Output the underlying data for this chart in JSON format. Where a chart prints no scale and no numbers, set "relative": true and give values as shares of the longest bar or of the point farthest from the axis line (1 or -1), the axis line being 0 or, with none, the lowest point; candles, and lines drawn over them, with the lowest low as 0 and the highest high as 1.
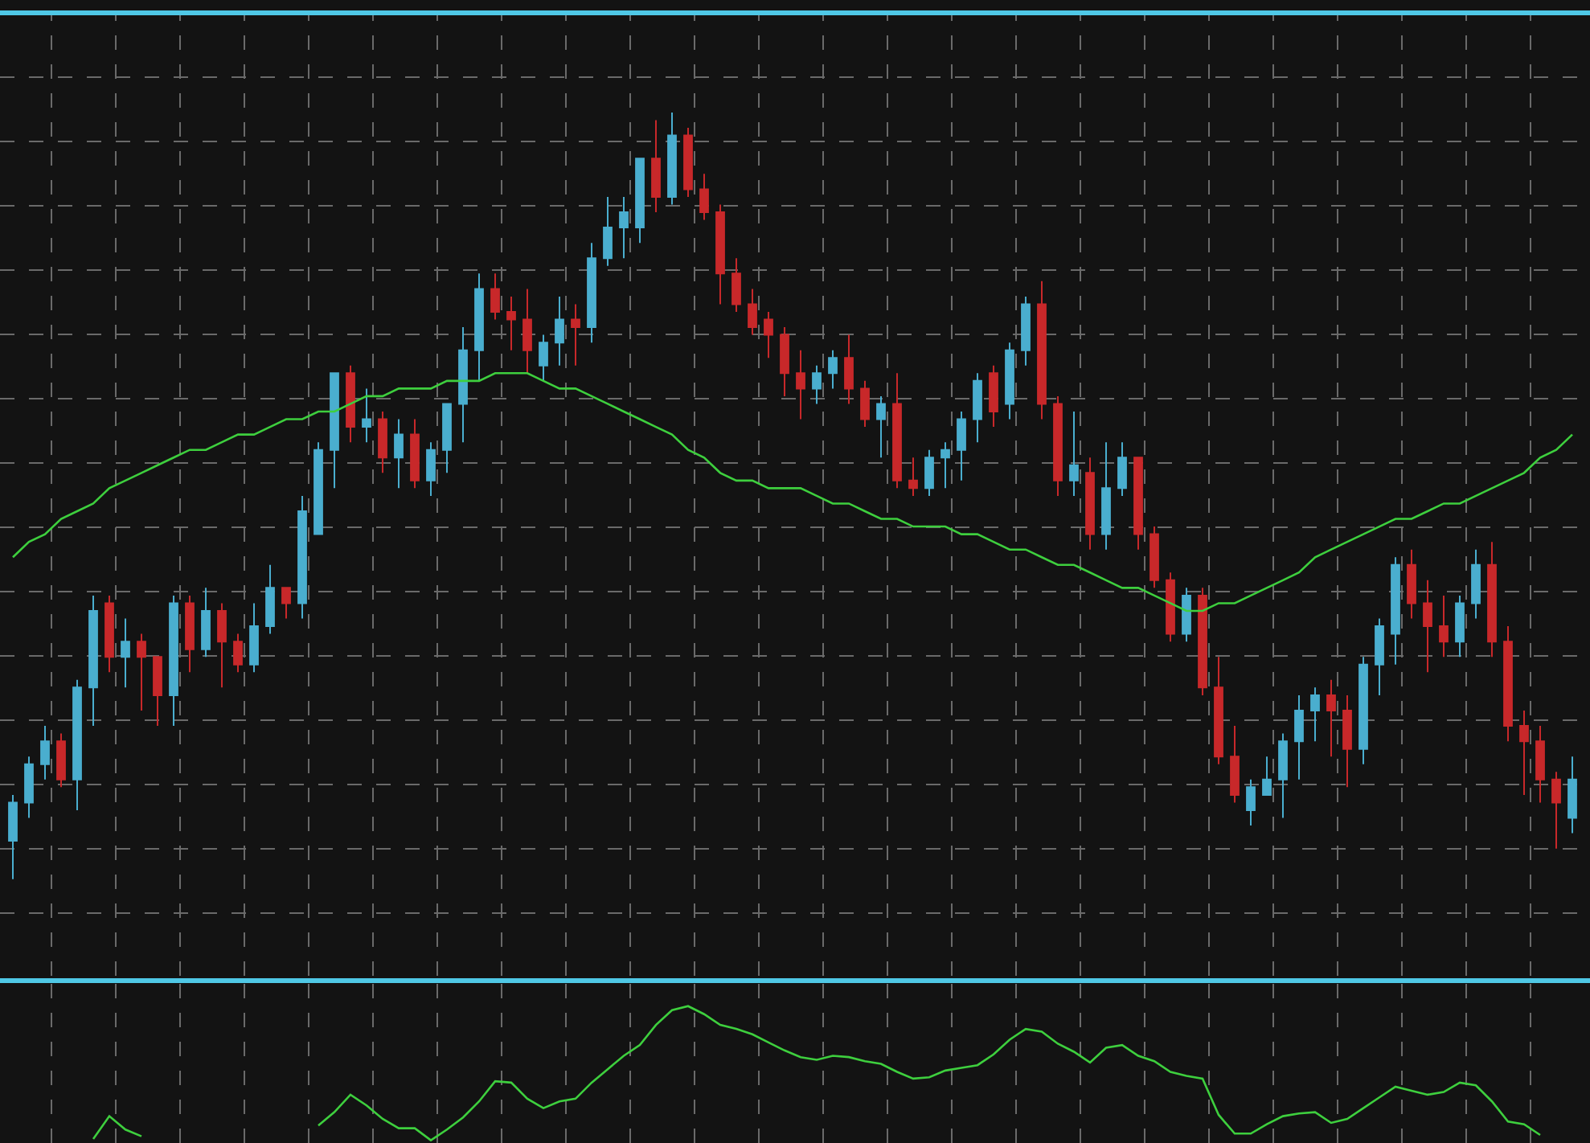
{
  "chart_data": [
    {
      "type": "candlestick",
      "relative": true,
      "grid": true,
      "tick_labels": false,
      "colors": [
        "#4aaecf",
        "#4aaecf",
        "#4aaecf",
        "#c8282a",
        "#4aaecf",
        "#4aaecf",
        "#c8282a",
        "#4aaecf",
        "#c8282a",
        "#c8282a",
        "#4aaecf",
        "#c8282a",
        "#4aaecf",
        "#c8282a",
        "#c8282a",
        "#4aaecf",
        "#4aaecf",
        "#c8282a",
        "#4aaecf",
        "#4aaecf",
        "#4aaecf",
        "#c8282a",
        "#4aaecf",
        "#c8282a",
        "#4aaecf",
        "#c8282a",
        "#4aaecf",
        "#4aaecf",
        "#4aaecf",
        "#4aaecf",
        "#c8282a",
        "#c8282a",
        "#c8282a",
        "#4aaecf",
        "#4aaecf",
        "#c8282a",
        "#4aaecf",
        "#4aaecf",
        "#4aaecf",
        "#4aaecf",
        "#c8282a",
        "#4aaecf",
        "#c8282a",
        "#c8282a",
        "#c8282a",
        "#c8282a",
        "#c8282a",
        "#c8282a",
        "#c8282a",
        "#c8282a",
        "#4aaecf",
        "#4aaecf",
        "#c8282a",
        "#c8282a",
        "#4aaecf",
        "#c8282a",
        "#c8282a",
        "#4aaecf",
        "#4aaecf",
        "#4aaecf",
        "#4aaecf",
        "#c8282a",
        "#4aaecf",
        "#4aaecf",
        "#c8282a",
        "#c8282a",
        "#4aaecf",
        "#c8282a",
        "#4aaecf",
        "#4aaecf",
        "#c8282a",
        "#c8282a",
        "#c8282a",
        "#4aaecf",
        "#c8282a",
        "#c8282a",
        "#c8282a",
        "#4aaecf",
        "#4aaecf",
        "#4aaecf",
        "#4aaecf",
        "#4aaecf",
        "#c8282a",
        "#c8282a",
        "#4aaecf",
        "#4aaecf",
        "#4aaecf",
        "#c8282a",
        "#c8282a",
        "#c8282a",
        "#4aaecf",
        "#4aaecf",
        "#c8282a",
        "#c8282a",
        "#c8282a",
        "#c8282a",
        "#c8282a",
        "#4aaecf"
      ],
      "categories": [
        null,
        null,
        null,
        null,
        null,
        null,
        null,
        null,
        null,
        null,
        null,
        null,
        null,
        null,
        null,
        null,
        null,
        null,
        null,
        null,
        null,
        null,
        null,
        null,
        null,
        null,
        null,
        null,
        null,
        null,
        null,
        null,
        null,
        null,
        null,
        null,
        null,
        null,
        null,
        null,
        null,
        null,
        null,
        null,
        null,
        null,
        null,
        null,
        null,
        null,
        null,
        null,
        null,
        null,
        null,
        null,
        null,
        null,
        null,
        null,
        null,
        null,
        null,
        null,
        null,
        null,
        null,
        null,
        null,
        null,
        null,
        null,
        null,
        null,
        null,
        null,
        null,
        null,
        null,
        null,
        null,
        null,
        null,
        null,
        null,
        null,
        null,
        null,
        null,
        null,
        null,
        null,
        null,
        null,
        null,
        null,
        null,
        null
      ],
      "ohlc": [
        [
          0.05,
          0.11,
          0,
          0.1
        ],
        [
          0.1,
          0.16,
          0.08,
          0.15
        ],
        [
          0.15,
          0.2,
          0.13,
          0.18
        ],
        [
          0.18,
          0.19,
          0.12,
          0.13
        ],
        [
          0.13,
          0.26,
          0.09,
          0.25
        ],
        [
          0.25,
          0.37,
          0.2,
          0.35
        ],
        [
          0.36,
          0.37,
          0.27,
          0.29
        ],
        [
          0.29,
          0.34,
          0.25,
          0.31
        ],
        [
          0.31,
          0.32,
          0.22,
          0.29
        ],
        [
          0.29,
          0.29,
          0.2,
          0.24
        ],
        [
          0.24,
          0.37,
          0.2,
          0.36
        ],
        [
          0.36,
          0.37,
          0.27,
          0.3
        ],
        [
          0.3,
          0.38,
          0.29,
          0.35
        ],
        [
          0.35,
          0.36,
          0.25,
          0.31
        ],
        [
          0.31,
          0.32,
          0.27,
          0.28
        ],
        [
          0.28,
          0.36,
          0.27,
          0.33
        ],
        [
          0.33,
          0.41,
          0.32,
          0.38
        ],
        [
          0.38,
          0.38,
          0.34,
          0.36
        ],
        [
          0.36,
          0.5,
          0.34,
          0.48
        ],
        [
          0.45,
          0.57,
          0.45,
          0.56
        ],
        [
          0.56,
          0.66,
          0.51,
          0.66
        ],
        [
          0.66,
          0.67,
          0.57,
          0.59
        ],
        [
          0.59,
          0.64,
          0.57,
          0.6
        ],
        [
          0.6,
          0.61,
          0.53,
          0.55
        ],
        [
          0.55,
          0.6,
          0.51,
          0.58
        ],
        [
          0.58,
          0.6,
          0.51,
          0.52
        ],
        [
          0.52,
          0.57,
          0.5,
          0.56
        ],
        [
          0.56,
          0.62,
          0.53,
          0.62
        ],
        [
          0.62,
          0.72,
          0.57,
          0.69
        ],
        [
          0.69,
          0.79,
          0.65,
          0.77
        ],
        [
          0.77,
          0.79,
          0.73,
          0.74
        ],
        [
          0.74,
          0.76,
          0.69,
          0.73
        ],
        [
          0.73,
          0.77,
          0.66,
          0.69
        ],
        [
          0.67,
          0.71,
          0.65,
          0.7
        ],
        [
          0.7,
          0.76,
          0.67,
          0.73
        ],
        [
          0.73,
          0.75,
          0.67,
          0.72
        ],
        [
          0.72,
          0.83,
          0.7,
          0.81
        ],
        [
          0.81,
          0.89,
          0.8,
          0.85
        ],
        [
          0.85,
          0.89,
          0.81,
          0.87
        ],
        [
          0.85,
          0.94,
          0.83,
          0.94
        ],
        [
          0.94,
          0.99,
          0.87,
          0.89
        ],
        [
          0.89,
          1,
          0.88,
          0.97
        ],
        [
          0.97,
          0.98,
          0.89,
          0.9
        ],
        [
          0.9,
          0.92,
          0.86,
          0.87
        ],
        [
          0.87,
          0.88,
          0.75,
          0.79
        ],
        [
          0.79,
          0.81,
          0.74,
          0.75
        ],
        [
          0.75,
          0.77,
          0.71,
          0.72
        ],
        [
          0.73,
          0.74,
          0.68,
          0.71
        ],
        [
          0.71,
          0.72,
          0.63,
          0.66
        ],
        [
          0.66,
          0.69,
          0.6,
          0.64
        ],
        [
          0.64,
          0.67,
          0.62,
          0.66
        ],
        [
          0.66,
          0.69,
          0.64,
          0.68
        ],
        [
          0.68,
          0.71,
          0.62,
          0.64
        ],
        [
          0.64,
          0.65,
          0.59,
          0.6
        ],
        [
          0.6,
          0.63,
          0.55,
          0.62
        ],
        [
          0.62,
          0.66,
          0.51,
          0.52
        ],
        [
          0.52,
          0.55,
          0.5,
          0.51
        ],
        [
          0.51,
          0.56,
          0.5,
          0.55
        ],
        [
          0.55,
          0.57,
          0.51,
          0.56
        ],
        [
          0.56,
          0.61,
          0.52,
          0.6
        ],
        [
          0.6,
          0.66,
          0.57,
          0.65
        ],
        [
          0.66,
          0.67,
          0.59,
          0.61
        ],
        [
          0.62,
          0.7,
          0.6,
          0.69
        ],
        [
          0.69,
          0.76,
          0.67,
          0.75
        ],
        [
          0.75,
          0.78,
          0.6,
          0.62
        ],
        [
          0.62,
          0.63,
          0.5,
          0.52
        ],
        [
          0.52,
          0.61,
          0.5,
          0.54
        ],
        [
          0.53,
          0.55,
          0.43,
          0.45
        ],
        [
          0.45,
          0.57,
          0.43,
          0.51
        ],
        [
          0.51,
          0.57,
          0.5,
          0.55
        ],
        [
          0.55,
          0.55,
          0.43,
          0.45
        ],
        [
          0.45,
          0.46,
          0.38,
          0.39
        ],
        [
          0.39,
          0.4,
          0.31,
          0.32
        ],
        [
          0.32,
          0.38,
          0.31,
          0.37
        ],
        [
          0.37,
          0.38,
          0.24,
          0.25
        ],
        [
          0.25,
          0.29,
          0.15,
          0.16
        ],
        [
          0.16,
          0.2,
          0.1,
          0.11
        ],
        [
          0.09,
          0.13,
          0.07,
          0.12
        ],
        [
          0.11,
          0.16,
          0.11,
          0.13
        ],
        [
          0.13,
          0.19,
          0.08,
          0.18
        ],
        [
          0.18,
          0.24,
          0.13,
          0.22
        ],
        [
          0.22,
          0.25,
          0.18,
          0.24
        ],
        [
          0.24,
          0.26,
          0.16,
          0.22
        ],
        [
          0.22,
          0.24,
          0.12,
          0.17
        ],
        [
          0.17,
          0.29,
          0.15,
          0.28
        ],
        [
          0.28,
          0.34,
          0.24,
          0.33
        ],
        [
          0.32,
          0.42,
          0.28,
          0.41
        ],
        [
          0.41,
          0.43,
          0.34,
          0.36
        ],
        [
          0.36,
          0.39,
          0.27,
          0.33
        ],
        [
          0.33,
          0.37,
          0.29,
          0.31
        ],
        [
          0.31,
          0.37,
          0.29,
          0.36
        ],
        [
          0.36,
          0.43,
          0.34,
          0.41
        ],
        [
          0.41,
          0.44,
          0.29,
          0.31
        ],
        [
          0.31,
          0.33,
          0.18,
          0.2
        ],
        [
          0.2,
          0.22,
          0.11,
          0.18
        ],
        [
          0.18,
          0.2,
          0.1,
          0.13
        ],
        [
          0.13,
          0.14,
          0.04,
          0.1
        ],
        [
          0.08,
          0.16,
          0.06,
          0.13
        ]
      ],
      "series": [
        {
          "type": "line",
          "color": "#3ecf3e",
          "values": [
            0.42,
            0.44,
            0.45,
            0.47,
            0.48,
            0.49,
            0.51,
            0.52,
            0.53,
            0.54,
            0.55,
            0.56,
            0.56,
            0.57,
            0.58,
            0.58,
            0.59,
            0.6,
            0.6,
            0.61,
            0.61,
            0.62,
            0.63,
            0.63,
            0.64,
            0.64,
            0.64,
            0.65,
            0.65,
            0.65,
            0.66,
            0.66,
            0.66,
            0.65,
            0.64,
            0.64,
            0.63,
            0.62,
            0.61,
            0.6,
            0.59,
            0.58,
            0.56,
            0.55,
            0.53,
            0.52,
            0.52,
            0.51,
            0.51,
            0.51,
            0.5,
            0.49,
            0.49,
            0.48,
            0.47,
            0.47,
            0.46,
            0.46,
            0.46,
            0.45,
            0.45,
            0.44,
            0.43,
            0.43,
            0.42,
            0.41,
            0.41,
            0.4,
            0.39,
            0.38,
            0.38,
            0.37,
            0.36,
            0.35,
            0.35,
            0.36,
            0.36,
            0.37,
            0.38,
            0.39,
            0.4,
            0.42,
            0.43,
            0.44,
            0.45,
            0.46,
            0.47,
            0.47,
            0.48,
            0.49,
            0.49,
            0.5,
            0.51,
            0.52,
            0.53,
            0.55,
            0.56,
            0.58
          ]
        }
      ]
    },
    {
      "type": "line",
      "relative": true,
      "grid": "x",
      "tick_labels": false,
      "categories": [
        null,
        null,
        null,
        null,
        null,
        null,
        null,
        null,
        null,
        null,
        null,
        null,
        null,
        null,
        null,
        null,
        null,
        null,
        null,
        null,
        null,
        null,
        null,
        null,
        null,
        null,
        null,
        null,
        null,
        null,
        null,
        null,
        null,
        null,
        null,
        null,
        null,
        null,
        null,
        null,
        null,
        null,
        null,
        null,
        null,
        null,
        null,
        null,
        null,
        null,
        null,
        null,
        null,
        null,
        null,
        null,
        null,
        null,
        null,
        null,
        null,
        null,
        null,
        null,
        null,
        null,
        null,
        null,
        null,
        null,
        null,
        null,
        null,
        null,
        null,
        null,
        null,
        null,
        null,
        null,
        null,
        null,
        null,
        null,
        null,
        null,
        null,
        null,
        null,
        null,
        null,
        null,
        null,
        null,
        null,
        null,
        null,
        null
      ],
      "series": [
        {
          "color": "#3ecf3e",
          "values": [
            null,
            null,
            null,
            null,
            null,
            0.01,
            0.18,
            0.08,
            0.03,
            null,
            null,
            null,
            null,
            null,
            null,
            null,
            null,
            null,
            null,
            0.11,
            0.21,
            0.34,
            0.26,
            0.16,
            0.09,
            0.09,
            0,
            0.08,
            0.17,
            0.29,
            0.44,
            0.43,
            0.31,
            0.24,
            0.29,
            0.31,
            0.43,
            0.53,
            0.63,
            0.71,
            0.86,
            0.97,
            1,
            0.94,
            0.86,
            0.83,
            0.79,
            0.73,
            0.67,
            0.62,
            0.6,
            0.63,
            0.62,
            0.59,
            0.57,
            0.51,
            0.46,
            0.47,
            0.52,
            0.54,
            0.56,
            0.64,
            0.75,
            0.83,
            0.81,
            0.72,
            0.66,
            0.58,
            0.69,
            0.71,
            0.63,
            0.59,
            0.51,
            0.48,
            0.46,
            0.19,
            0.05,
            0.05,
            0.12,
            0.18,
            0.2,
            0.21,
            0.13,
            0.16,
            0.24,
            0.32,
            0.4,
            0.37,
            0.34,
            0.36,
            0.43,
            0.41,
            0.29,
            0.14,
            0.12,
            0.04,
            null,
            null
          ]
        }
      ]
    }
  ]
}
